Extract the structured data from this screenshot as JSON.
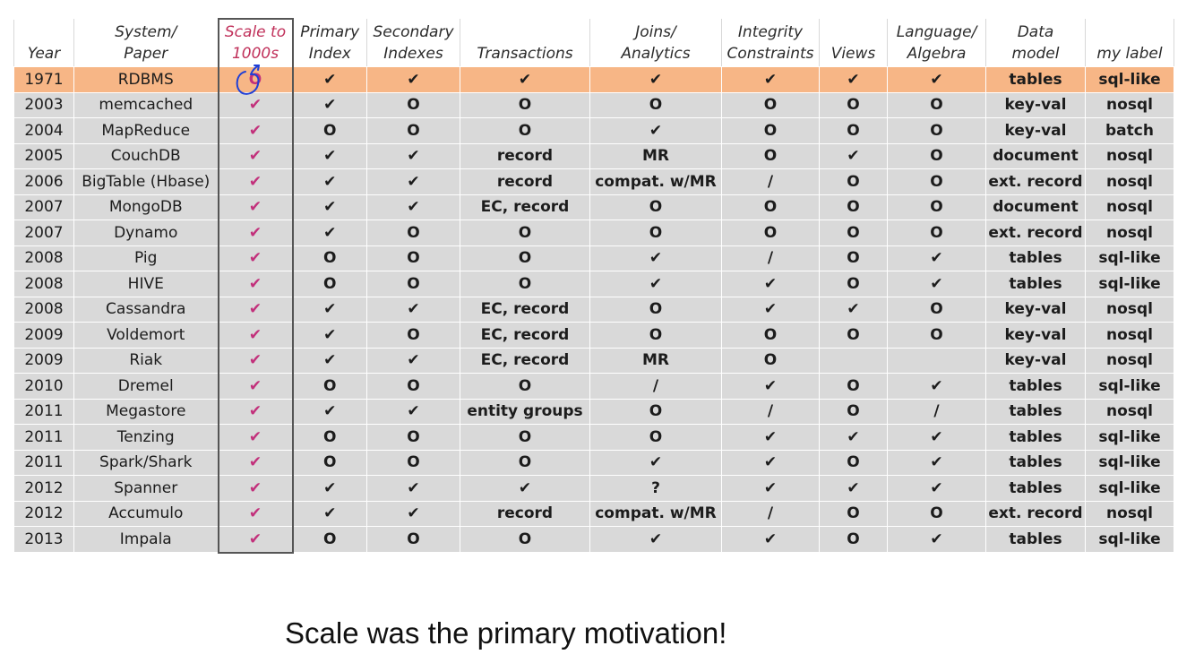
{
  "table": {
    "headers": [
      {
        "key": "year",
        "l1": "",
        "l2": "Year"
      },
      {
        "key": "system",
        "l1": "System/",
        "l2": "Paper"
      },
      {
        "key": "scale",
        "l1": "Scale to",
        "l2": "1000s"
      },
      {
        "key": "primary",
        "l1": "Primary",
        "l2": "Index"
      },
      {
        "key": "secondary",
        "l1": "Secondary",
        "l2": "Indexes"
      },
      {
        "key": "transactions",
        "l1": "",
        "l2": "Transactions"
      },
      {
        "key": "joins",
        "l1": "Joins/",
        "l2": "Analytics"
      },
      {
        "key": "integrity",
        "l1": "Integrity",
        "l2": "Constraints"
      },
      {
        "key": "views",
        "l1": "",
        "l2": "Views"
      },
      {
        "key": "language",
        "l1": "Language/",
        "l2": "Algebra"
      },
      {
        "key": "datamodel",
        "l1": "Data",
        "l2": "model"
      },
      {
        "key": "label",
        "l1": "",
        "l2": "my label"
      }
    ],
    "rows": [
      [
        "1971",
        "RDBMS",
        "O",
        "✔",
        "✔",
        "✔",
        "✔",
        "✔",
        "✔",
        "✔",
        "tables",
        "sql-like"
      ],
      [
        "2003",
        "memcached",
        "✔",
        "✔",
        "O",
        "O",
        "O",
        "O",
        "O",
        "O",
        "key-val",
        "nosql"
      ],
      [
        "2004",
        "MapReduce",
        "✔",
        "O",
        "O",
        "O",
        "✔",
        "O",
        "O",
        "O",
        "key-val",
        "batch"
      ],
      [
        "2005",
        "CouchDB",
        "✔",
        "✔",
        "✔",
        "record",
        "MR",
        "O",
        "✔",
        "O",
        "document",
        "nosql"
      ],
      [
        "2006",
        "BigTable (Hbase)",
        "✔",
        "✔",
        "✔",
        "record",
        "compat. w/MR",
        "/",
        "O",
        "O",
        "ext. record",
        "nosql"
      ],
      [
        "2007",
        "MongoDB",
        "✔",
        "✔",
        "✔",
        "EC, record",
        "O",
        "O",
        "O",
        "O",
        "document",
        "nosql"
      ],
      [
        "2007",
        "Dynamo",
        "✔",
        "✔",
        "O",
        "O",
        "O",
        "O",
        "O",
        "O",
        "ext. record",
        "nosql"
      ],
      [
        "2008",
        "Pig",
        "✔",
        "O",
        "O",
        "O",
        "✔",
        "/",
        "O",
        "✔",
        "tables",
        "sql-like"
      ],
      [
        "2008",
        "HIVE",
        "✔",
        "O",
        "O",
        "O",
        "✔",
        "✔",
        "O",
        "✔",
        "tables",
        "sql-like"
      ],
      [
        "2008",
        "Cassandra",
        "✔",
        "✔",
        "✔",
        "EC, record",
        "O",
        "✔",
        "✔",
        "O",
        "key-val",
        "nosql"
      ],
      [
        "2009",
        "Voldemort",
        "✔",
        "✔",
        "O",
        "EC, record",
        "O",
        "O",
        "O",
        "O",
        "key-val",
        "nosql"
      ],
      [
        "2009",
        "Riak",
        "✔",
        "✔",
        "✔",
        "EC, record",
        "MR",
        "O",
        "",
        "",
        "key-val",
        "nosql"
      ],
      [
        "2010",
        "Dremel",
        "✔",
        "O",
        "O",
        "O",
        "/",
        "✔",
        "O",
        "✔",
        "tables",
        "sql-like"
      ],
      [
        "2011",
        "Megastore",
        "✔",
        "✔",
        "✔",
        "entity groups",
        "O",
        "/",
        "O",
        "/",
        "tables",
        "nosql"
      ],
      [
        "2011",
        "Tenzing",
        "✔",
        "O",
        "O",
        "O",
        "O",
        "✔",
        "✔",
        "✔",
        "tables",
        "sql-like"
      ],
      [
        "2011",
        "Spark/Shark",
        "✔",
        "O",
        "O",
        "O",
        "✔",
        "✔",
        "O",
        "✔",
        "tables",
        "sql-like"
      ],
      [
        "2012",
        "Spanner",
        "✔",
        "✔",
        "✔",
        "✔",
        "?",
        "✔",
        "✔",
        "✔",
        "tables",
        "sql-like"
      ],
      [
        "2012",
        "Accumulo",
        "✔",
        "✔",
        "✔",
        "record",
        "compat. w/MR",
        "/",
        "O",
        "O",
        "ext. record",
        "nosql"
      ],
      [
        "2013",
        "Impala",
        "✔",
        "O",
        "O",
        "O",
        "✔",
        "✔",
        "O",
        "✔",
        "tables",
        "sql-like"
      ]
    ]
  },
  "caption": "Scale was the primary motivation!",
  "colors": {
    "highlight_row": "#f7b686",
    "cell_bg": "#d9d9d9",
    "scale_mark": "#c2307b",
    "annotation_ink": "#1f3fd6"
  },
  "annotation_icon": "hand-drawn-circle-arrow-icon"
}
